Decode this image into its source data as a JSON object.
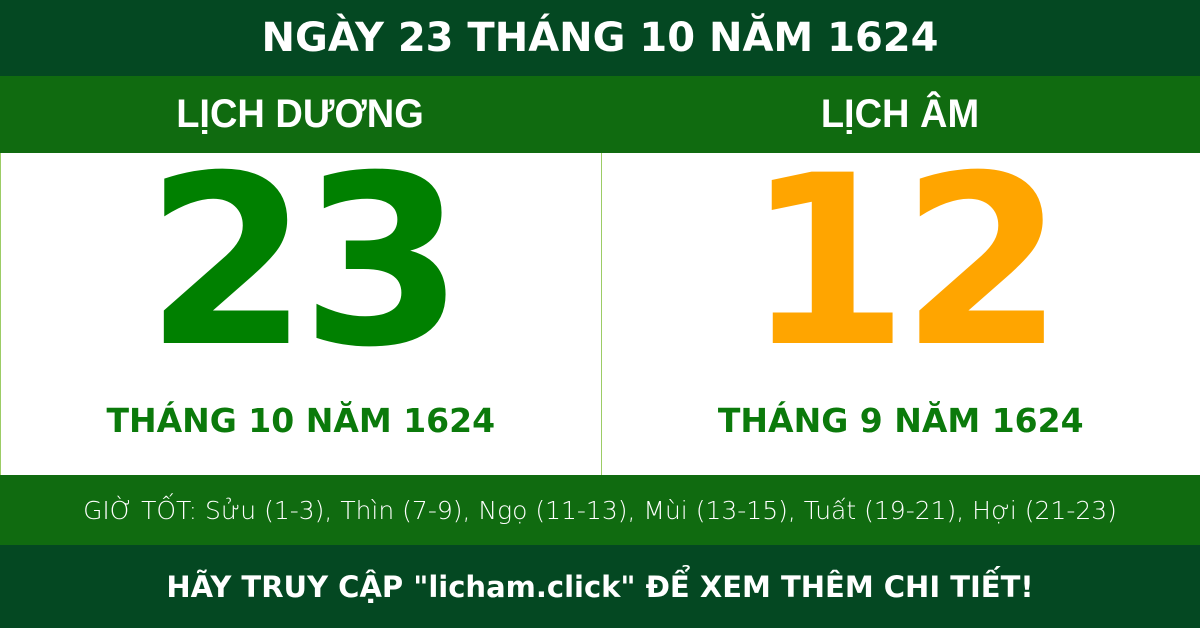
{
  "title": "NGÀY 23 THÁNG 10 NĂM 1624",
  "solar": {
    "heading": "LỊCH DƯƠNG",
    "day": "23",
    "month_year": "THÁNG 10 NĂM 1624"
  },
  "lunar": {
    "heading": "LỊCH ÂM",
    "day": "12",
    "month_year": "THÁNG 9 NĂM 1624"
  },
  "good_hours": "GIỜ TỐT: Sửu (1-3), Thìn (7-9), Ngọ (11-13), Mùi (13-15), Tuất (19-21), Hợi (21-23)",
  "footer": "HÃY TRUY CẬP \"licham.click\" ĐỂ XEM THÊM CHI TIẾT!",
  "colors": {
    "dark_green": "#044822",
    "mid_green": "#106b10",
    "solar_number": "#008000",
    "lunar_number": "#ffa500"
  }
}
